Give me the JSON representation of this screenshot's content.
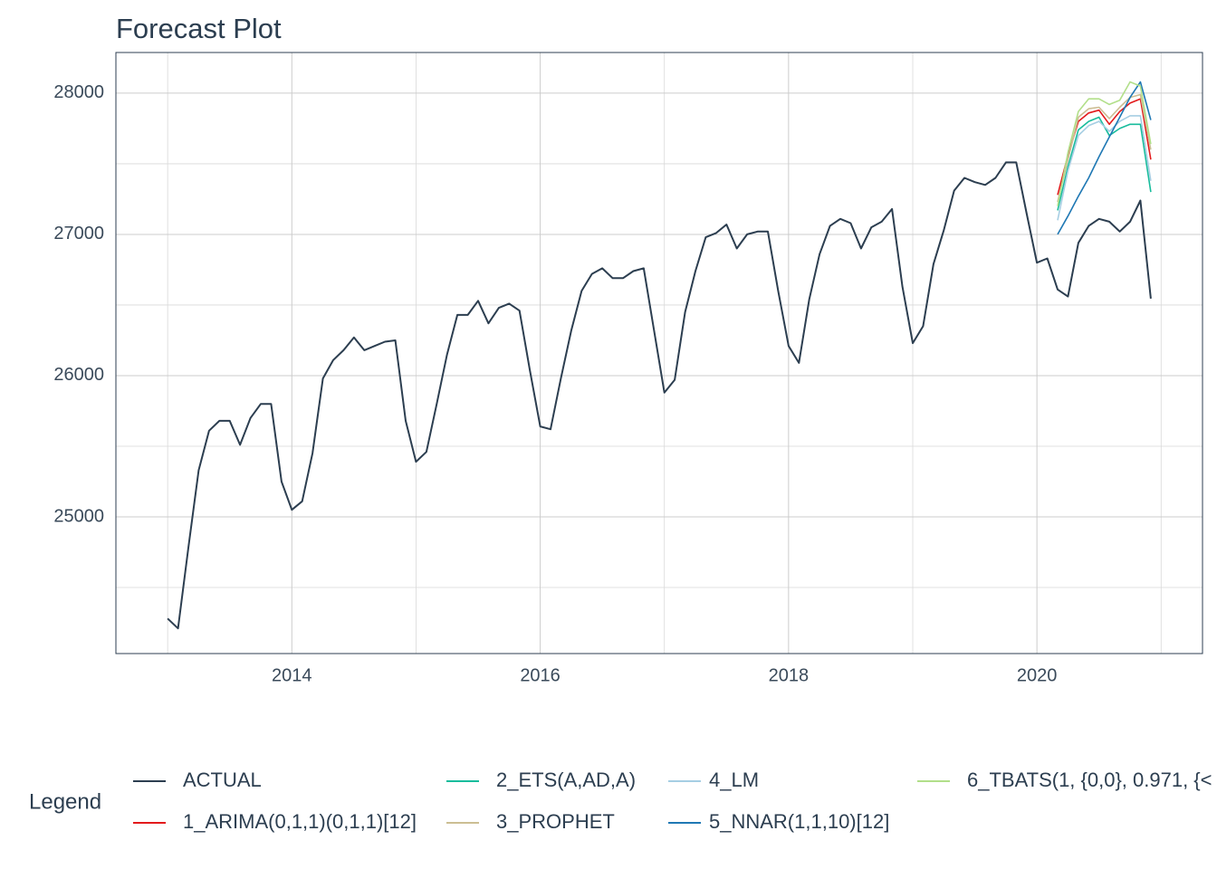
{
  "chart_data": {
    "type": "line",
    "title": "Forecast Plot",
    "legend_title": "Legend",
    "xlim": [
      "2012-08",
      "2021-05"
    ],
    "xticks": [
      {
        "value": "2014-01",
        "label": "2014"
      },
      {
        "value": "2016-01",
        "label": "2016"
      },
      {
        "value": "2018-01",
        "label": "2018"
      },
      {
        "value": "2020-01",
        "label": "2020"
      }
    ],
    "x_minor_grid": [
      "2013-01",
      "2015-01",
      "2017-01",
      "2019-01",
      "2021-01"
    ],
    "ylim": [
      24032,
      28288
    ],
    "yticks": [
      25000,
      26000,
      27000,
      28000
    ],
    "y_minor_grid": [
      24500,
      25500,
      26500,
      27500
    ],
    "grid": true,
    "series": [
      {
        "name": "ACTUAL",
        "color": "#2c3e50",
        "x": [
          "2013-01",
          "2013-02",
          "2013-03",
          "2013-04",
          "2013-05",
          "2013-06",
          "2013-07",
          "2013-08",
          "2013-09",
          "2013-10",
          "2013-11",
          "2013-12",
          "2014-01",
          "2014-02",
          "2014-03",
          "2014-04",
          "2014-05",
          "2014-06",
          "2014-07",
          "2014-08",
          "2014-09",
          "2014-10",
          "2014-11",
          "2014-12",
          "2015-01",
          "2015-02",
          "2015-03",
          "2015-04",
          "2015-05",
          "2015-06",
          "2015-07",
          "2015-08",
          "2015-09",
          "2015-10",
          "2015-11",
          "2015-12",
          "2016-01",
          "2016-02",
          "2016-03",
          "2016-04",
          "2016-05",
          "2016-06",
          "2016-07",
          "2016-08",
          "2016-09",
          "2016-10",
          "2016-11",
          "2016-12",
          "2017-01",
          "2017-02",
          "2017-03",
          "2017-04",
          "2017-05",
          "2017-06",
          "2017-07",
          "2017-08",
          "2017-09",
          "2017-10",
          "2017-11",
          "2017-12",
          "2018-01",
          "2018-02",
          "2018-03",
          "2018-04",
          "2018-05",
          "2018-06",
          "2018-07",
          "2018-08",
          "2018-09",
          "2018-10",
          "2018-11",
          "2018-12",
          "2019-01",
          "2019-02",
          "2019-03",
          "2019-04",
          "2019-05",
          "2019-06",
          "2019-07",
          "2019-08",
          "2019-09",
          "2019-10",
          "2019-11",
          "2019-12",
          "2020-01",
          "2020-02",
          "2020-03",
          "2020-04",
          "2020-05",
          "2020-06",
          "2020-07",
          "2020-08",
          "2020-09",
          "2020-10",
          "2020-11",
          "2020-12"
        ],
        "values": [
          24280,
          24210,
          24780,
          25330,
          25610,
          25680,
          25680,
          25510,
          25700,
          25800,
          25800,
          25250,
          25050,
          25110,
          25450,
          25980,
          26110,
          26180,
          26270,
          26180,
          26210,
          26240,
          26250,
          25680,
          25390,
          25460,
          25800,
          26150,
          26430,
          26430,
          26530,
          26370,
          26480,
          26510,
          26460,
          26040,
          25640,
          25620,
          25980,
          26320,
          26600,
          26720,
          26760,
          26690,
          26690,
          26740,
          26760,
          26320,
          25880,
          25970,
          26450,
          26740,
          26980,
          27010,
          27070,
          26900,
          27000,
          27020,
          27020,
          26600,
          26210,
          26090,
          26540,
          26860,
          27060,
          27110,
          27080,
          26900,
          27050,
          27090,
          27180,
          26630,
          26230,
          26350,
          26790,
          27030,
          27310,
          27400,
          27370,
          27350,
          27400,
          27510,
          27510,
          27150,
          26800,
          26830,
          26610,
          26560,
          26940,
          27060,
          27110,
          27090,
          27020,
          27090,
          27240,
          26545
        ]
      },
      {
        "name": "1_ARIMA(0,1,1)(0,1,1)[12]",
        "color": "#e31a1c",
        "x": [
          "2020-03",
          "2020-04",
          "2020-05",
          "2020-06",
          "2020-07",
          "2020-08",
          "2020-09",
          "2020-10",
          "2020-11",
          "2020-12"
        ],
        "values": [
          27280,
          27560,
          27800,
          27860,
          27880,
          27780,
          27870,
          27930,
          27960,
          27530
        ]
      },
      {
        "name": "2_ETS(A,AD,A)",
        "color": "#18bc9c",
        "x": [
          "2020-03",
          "2020-04",
          "2020-05",
          "2020-06",
          "2020-07",
          "2020-08",
          "2020-09",
          "2020-10",
          "2020-11",
          "2020-12"
        ],
        "values": [
          27170,
          27480,
          27740,
          27800,
          27830,
          27700,
          27750,
          27780,
          27780,
          27300
        ]
      },
      {
        "name": "3_PROPHET",
        "color": "#ccbe93",
        "x": [
          "2020-03",
          "2020-04",
          "2020-05",
          "2020-06",
          "2020-07",
          "2020-08",
          "2020-09",
          "2020-10",
          "2020-11",
          "2020-12"
        ],
        "values": [
          27230,
          27530,
          27830,
          27890,
          27900,
          27820,
          27900,
          27970,
          27990,
          27600
        ]
      },
      {
        "name": "4_LM",
        "color": "#a6cee3",
        "x": [
          "2020-03",
          "2020-04",
          "2020-05",
          "2020-06",
          "2020-07",
          "2020-08",
          "2020-09",
          "2020-10",
          "2020-11",
          "2020-12"
        ],
        "values": [
          27100,
          27450,
          27700,
          27770,
          27800,
          27730,
          27800,
          27840,
          27840,
          27380
        ]
      },
      {
        "name": "5_NNAR(1,1,10)[12]",
        "color": "#1f78b4",
        "x": [
          "2020-03",
          "2020-04",
          "2020-05",
          "2020-06",
          "2020-07",
          "2020-08",
          "2020-09",
          "2020-10",
          "2020-11",
          "2020-12"
        ],
        "values": [
          27000,
          27130,
          27270,
          27400,
          27550,
          27690,
          27830,
          27970,
          28080,
          27810
        ]
      },
      {
        "name": "6_TBATS(1, {0,0}, 0.971, {<",
        "color": "#b2df8a",
        "x": [
          "2020-03",
          "2020-04",
          "2020-05",
          "2020-06",
          "2020-07",
          "2020-08",
          "2020-09",
          "2020-10",
          "2020-11",
          "2020-12"
        ],
        "values": [
          27200,
          27580,
          27870,
          27960,
          27960,
          27920,
          27950,
          28080,
          28050,
          27640
        ]
      }
    ]
  }
}
